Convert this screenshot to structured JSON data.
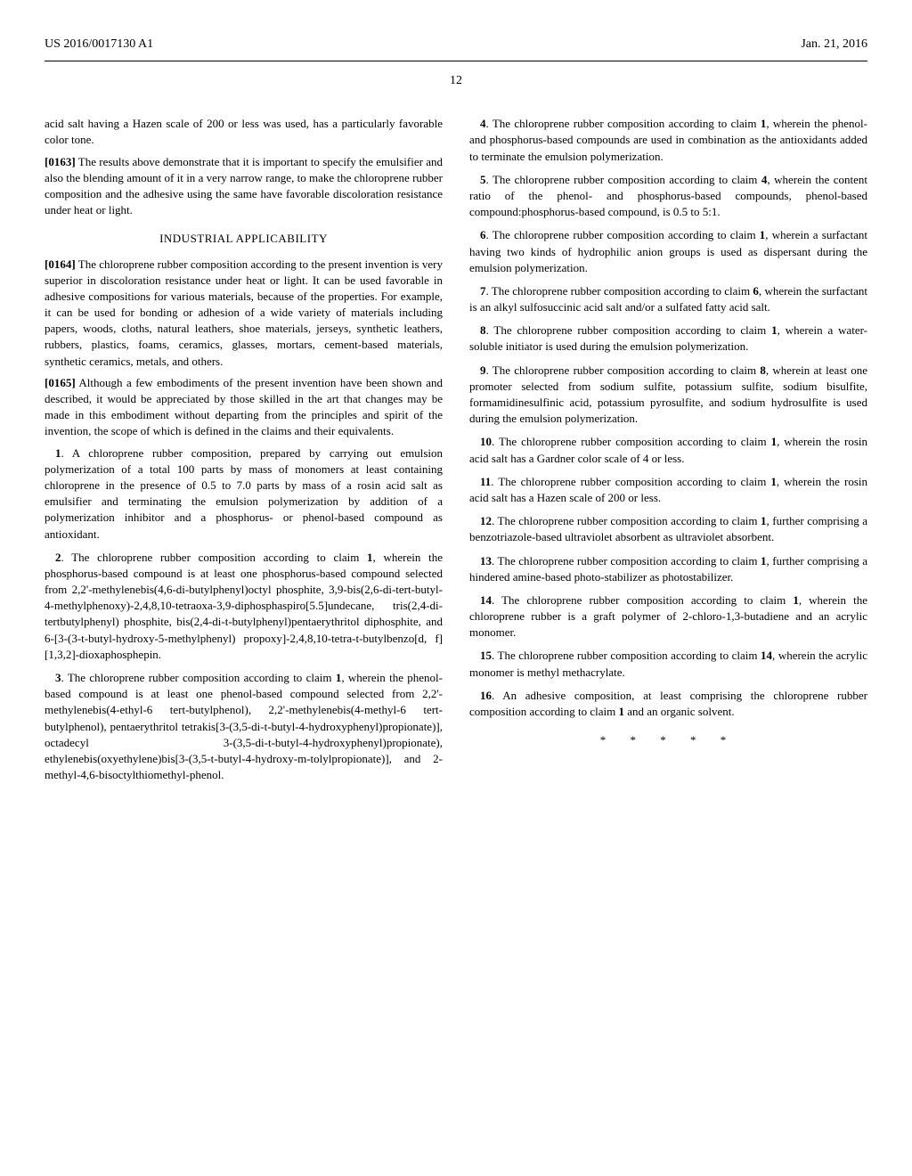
{
  "header": {
    "pub_number": "US 2016/0017130 A1",
    "date": "Jan. 21, 2016"
  },
  "page_number": "12",
  "paragraphs": {
    "p_intro": "acid salt having a Hazen scale of 200 or less was used, has a particularly favorable color tone.",
    "p0163_num": "[0163]",
    "p0163": "The results above demonstrate that it is important to specify the emulsifier and also the blending amount of it in a very narrow range, to make the chloroprene rubber composition and the adhesive using the same have favorable discoloration resistance under heat or light.",
    "heading_industrial": "INDUSTRIAL APPLICABILITY",
    "p0164_num": "[0164]",
    "p0164": "The chloroprene rubber composition according to the present invention is very superior in discoloration resistance under heat or light. It can be used favorable in adhesive compositions for various materials, because of the properties. For example, it can be used for bonding or adhesion of a wide variety of materials including papers, woods, cloths, natural leathers, shoe materials, jerseys, synthetic leathers, rubbers, plastics, foams, ceramics, glasses, mortars, cement-based materials, synthetic ceramics, metals, and others.",
    "p0165_num": "[0165]",
    "p0165": "Although a few embodiments of the present invention have been shown and described, it would be appreciated by those skilled in the art that changes may be made in this embodiment without departing from the principles and spirit of the invention, the scope of which is defined in the claims and their equivalents."
  },
  "claims": {
    "c1_num": "1",
    "c1": ". A chloroprene rubber composition, prepared by carrying out emulsion polymerization of a total 100 parts by mass of monomers at least containing chloroprene in the presence of 0.5 to 7.0 parts by mass of a rosin acid salt as emulsifier and terminating the emulsion polymerization by addition of a polymerization inhibitor and a phosphorus- or phenol-based compound as antioxidant.",
    "c2_num": "2",
    "c2": ". The chloroprene rubber composition according to claim ",
    "c2_ref": "1",
    "c2_cont": ", wherein the phosphorus-based compound is at least one phosphorus-based compound selected from 2,2'-methylenebis(4,6-di-butylphenyl)octyl phosphite, 3,9-bis(2,6-di-tert-butyl-4-methylphenoxy)-2,4,8,10-tetraoxa-3,9-diphosphaspiro[5.5]undecane, tris(2,4-di-tertbutylphenyl) phosphite, bis(2,4-di-t-butylphenyl)pentaerythritol diphosphite, and 6-[3-(3-t-butyl-hydroxy-5-methylphenyl) propoxy]-2,4,8,10-tetra-t-butylbenzo[d, f][1,3,2]-dioxaphosphepin.",
    "c3_num": "3",
    "c3": ". The chloroprene rubber composition according to claim ",
    "c3_ref": "1",
    "c3_cont": ", wherein the phenol-based compound is at least one phenol-based compound selected from 2,2'-methylenebis(4-ethyl-6 tert-butylphenol), 2,2'-methylenebis(4-methyl-6 tert-butylphenol), pentaerythritol tetrakis[3-(3,5-di-t-butyl-4-hydroxyphenyl)propionate)], octadecyl 3-(3,5-di-t-butyl-4-hydroxyphenyl)propionate), ethylenebis(oxyethylene)bis[3-(3,5-t-butyl-4-hydroxy-m-tolylpropionate)], and 2-methyl-4,6-bisoctylthiomethyl-phenol.",
    "c4_num": "4",
    "c4": ". The chloroprene rubber composition according to claim ",
    "c4_ref": "1",
    "c4_cont": ", wherein the phenol- and phosphorus-based compounds are used in combination as the antioxidants added to terminate the emulsion polymerization.",
    "c5_num": "5",
    "c5": ". The chloroprene rubber composition according to claim ",
    "c5_ref": "4",
    "c5_cont": ", wherein the content ratio of the phenol- and phosphorus-based compounds, phenol-based compound:phosphorus-based compound, is 0.5 to 5:1.",
    "c6_num": "6",
    "c6": ". The chloroprene rubber composition according to claim ",
    "c6_ref": "1",
    "c6_cont": ", wherein a surfactant having two kinds of hydrophilic anion groups is used as dispersant during the emulsion polymerization.",
    "c7_num": "7",
    "c7": ". The chloroprene rubber composition according to claim ",
    "c7_ref": "6",
    "c7_cont": ", wherein the surfactant is an alkyl sulfosuccinic acid salt and/or a sulfated fatty acid salt.",
    "c8_num": "8",
    "c8": ". The chloroprene rubber composition according to claim ",
    "c8_ref": "1",
    "c8_cont": ", wherein a water-soluble initiator is used during the emulsion polymerization.",
    "c9_num": "9",
    "c9": ". The chloroprene rubber composition according to claim ",
    "c9_ref": "8",
    "c9_cont": ", wherein at least one promoter selected from sodium sulfite, potassium sulfite, sodium bisulfite, formamidinesulfinic acid, potassium pyrosulfite, and sodium hydrosulfite is used during the emulsion polymerization.",
    "c10_num": "10",
    "c10": ". The chloroprene rubber composition according to claim ",
    "c10_ref": "1",
    "c10_cont": ", wherein the rosin acid salt has a Gardner color scale of 4 or less.",
    "c11_num": "11",
    "c11": ". The chloroprene rubber composition according to claim ",
    "c11_ref": "1",
    "c11_cont": ", wherein the rosin acid salt has a Hazen scale of 200 or less.",
    "c12_num": "12",
    "c12": ". The chloroprene rubber composition according to claim ",
    "c12_ref": "1",
    "c12_cont": ", further comprising a benzotriazole-based ultraviolet absorbent as ultraviolet absorbent.",
    "c13_num": "13",
    "c13": ". The chloroprene rubber composition according to claim ",
    "c13_ref": "1",
    "c13_cont": ", further comprising a hindered amine-based photo-stabilizer as photostabilizer.",
    "c14_num": "14",
    "c14": ". The chloroprene rubber composition according to claim ",
    "c14_ref": "1",
    "c14_cont": ", wherein the chloroprene rubber is a graft polymer of 2-chloro-1,3-butadiene and an acrylic monomer.",
    "c15_num": "15",
    "c15": ". The chloroprene rubber composition according to claim ",
    "c15_ref": "14",
    "c15_cont": ", wherein the acrylic monomer is methyl methacrylate.",
    "c16_num": "16",
    "c16": ". An adhesive composition, at least comprising the chloroprene rubber composition according to claim ",
    "c16_ref": "1",
    "c16_cont": " and an organic solvent."
  },
  "end_marks": "* * * * *"
}
